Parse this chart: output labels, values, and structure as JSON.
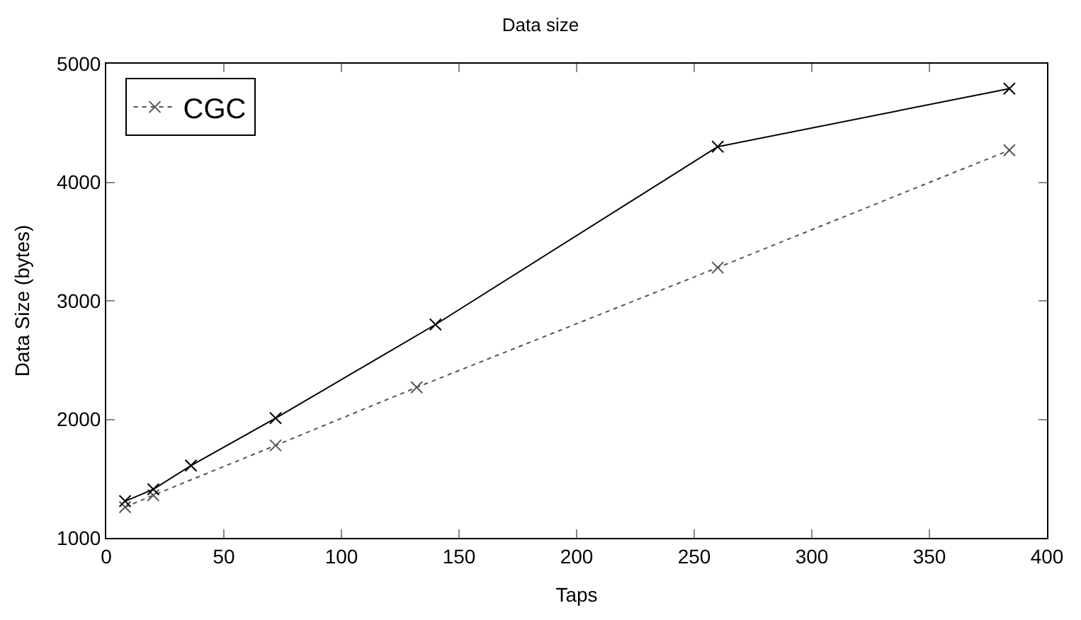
{
  "chart_data": {
    "type": "line",
    "title": "Data size",
    "xlabel": "Taps",
    "ylabel": "Data Size (bytes)",
    "xlim": [
      0,
      400
    ],
    "xticks": [
      0,
      50,
      100,
      150,
      200,
      250,
      300,
      350,
      400
    ],
    "ylim": [
      1000,
      5000
    ],
    "yticks": [
      1000,
      2000,
      3000,
      4000,
      5000
    ],
    "legend": "top left",
    "marker": "cross",
    "series": [
      {
        "name": "CGC",
        "color": "#555555",
        "line_style": "dotted",
        "x": [
          8,
          20,
          72,
          132,
          260,
          384
        ],
        "values": [
          1260,
          1360,
          1780,
          2270,
          3280,
          4270
        ]
      },
      {
        "color": "#000000",
        "line_style": "solid",
        "x": [
          8,
          20,
          36,
          72,
          140,
          260,
          384
        ],
        "values": [
          1310,
          1410,
          1610,
          2010,
          2800,
          4300,
          4790
        ]
      }
    ]
  }
}
